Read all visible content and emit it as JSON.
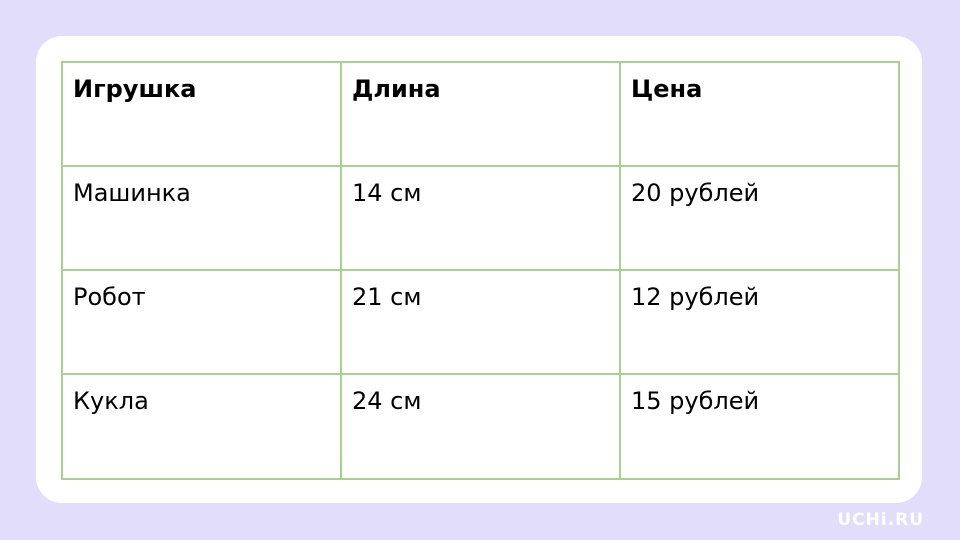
{
  "table": {
    "headers": [
      "Игрушка",
      "Длина",
      "Цена"
    ],
    "rows": [
      [
        "Машинка",
        "14 см",
        "20 рублей"
      ],
      [
        "Робот",
        "21 см",
        "12 рублей"
      ],
      [
        "Кукла",
        "24 см",
        "15 рублей"
      ]
    ]
  },
  "logo": "UCHi.RU"
}
